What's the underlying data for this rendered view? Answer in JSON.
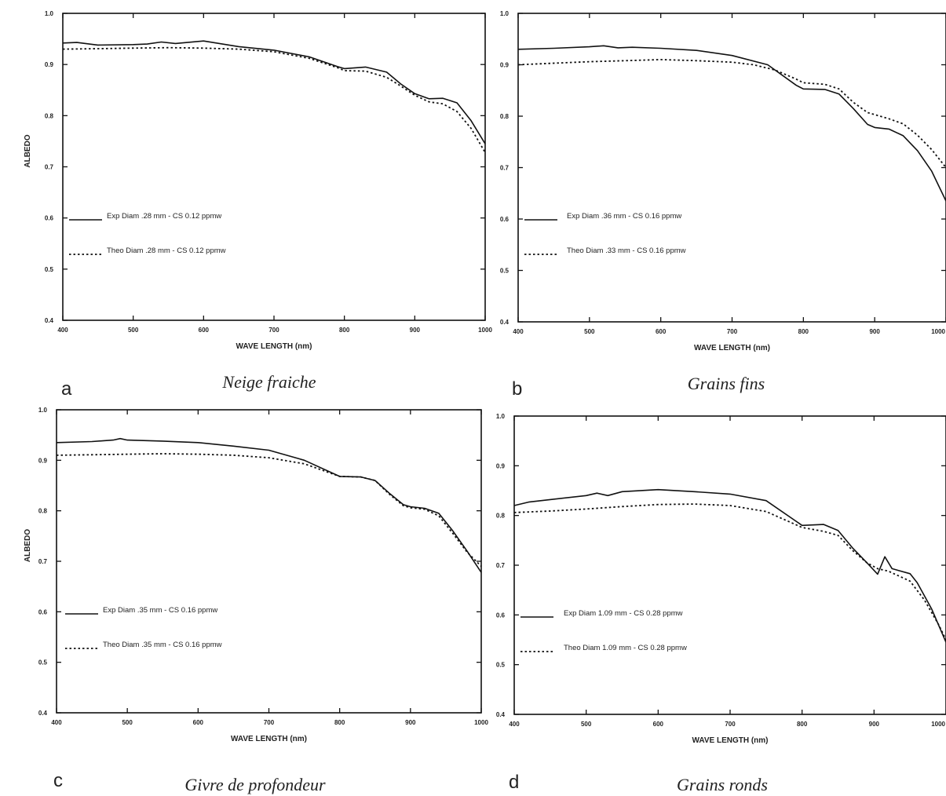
{
  "chart_data": [
    {
      "type": "line",
      "panel": "a",
      "caption": "Neige fraiche",
      "xlabel": "WAVE LENGTH (nm)",
      "ylabel": "ALBEDO",
      "xlim": [
        400,
        1000
      ],
      "ylim": [
        0.4,
        1.0
      ],
      "xticks": [
        "400",
        "500",
        "600",
        "700",
        "800",
        "900",
        "1000"
      ],
      "yticks": [
        "0.4",
        "0.5",
        "0.6",
        "0.7",
        "0.8",
        "0.9",
        "1.0"
      ],
      "legend_position": "center-left",
      "series": [
        {
          "name": "Exp  Diam .28 mm - CS 0.12 ppmw",
          "style": "solid",
          "x": [
            400,
            420,
            450,
            500,
            520,
            540,
            560,
            600,
            650,
            700,
            750,
            790,
            800,
            830,
            860,
            880,
            900,
            920,
            940,
            960,
            980,
            1000
          ],
          "y": [
            0.942,
            0.943,
            0.938,
            0.939,
            0.94,
            0.944,
            0.941,
            0.946,
            0.935,
            0.928,
            0.915,
            0.896,
            0.892,
            0.895,
            0.885,
            0.862,
            0.843,
            0.833,
            0.834,
            0.825,
            0.79,
            0.745
          ]
        },
        {
          "name": "Theo Diam .28 mm - CS 0.12 ppmw",
          "style": "dotted",
          "x": [
            400,
            450,
            500,
            550,
            600,
            650,
            700,
            750,
            790,
            800,
            830,
            860,
            880,
            900,
            920,
            940,
            960,
            980,
            1000
          ],
          "y": [
            0.93,
            0.931,
            0.932,
            0.933,
            0.932,
            0.93,
            0.925,
            0.912,
            0.894,
            0.888,
            0.887,
            0.875,
            0.858,
            0.84,
            0.827,
            0.823,
            0.808,
            0.775,
            0.728
          ]
        }
      ]
    },
    {
      "type": "line",
      "panel": "b",
      "caption": "Grains fins",
      "xlabel": "WAVE LENGTH (nm)",
      "ylabel": "",
      "xlim": [
        400,
        1000
      ],
      "ylim": [
        0.4,
        1.0
      ],
      "xticks": [
        "400",
        "500",
        "600",
        "700",
        "800",
        "900",
        "1000"
      ],
      "yticks": [
        "0.4",
        "0.5",
        "0.6",
        "0.7",
        "0.8",
        "0.9",
        "1.0"
      ],
      "legend_position": "center-left",
      "series": [
        {
          "name": "Exp  Diam .36 mm - CS 0.16 ppmw",
          "style": "solid",
          "x": [
            400,
            450,
            500,
            520,
            540,
            560,
            600,
            650,
            700,
            750,
            790,
            800,
            830,
            850,
            870,
            890,
            900,
            920,
            940,
            960,
            980,
            1000
          ],
          "y": [
            0.93,
            0.932,
            0.935,
            0.937,
            0.933,
            0.934,
            0.932,
            0.928,
            0.918,
            0.9,
            0.86,
            0.853,
            0.852,
            0.843,
            0.815,
            0.784,
            0.778,
            0.775,
            0.762,
            0.733,
            0.693,
            0.635
          ]
        },
        {
          "name": "Theo Diam .33 mm - CS 0.16 ppmw",
          "style": "dotted",
          "x": [
            400,
            450,
            500,
            550,
            600,
            650,
            700,
            730,
            760,
            790,
            800,
            830,
            850,
            870,
            890,
            900,
            920,
            940,
            960,
            980,
            1000
          ],
          "y": [
            0.9,
            0.903,
            0.906,
            0.908,
            0.91,
            0.908,
            0.905,
            0.9,
            0.89,
            0.872,
            0.865,
            0.862,
            0.853,
            0.827,
            0.807,
            0.803,
            0.795,
            0.785,
            0.763,
            0.735,
            0.7
          ]
        }
      ]
    },
    {
      "type": "line",
      "panel": "c",
      "caption": "Givre de profondeur",
      "xlabel": "WAVE LENGTH (nm)",
      "ylabel": "ALBEDO",
      "xlim": [
        400,
        1000
      ],
      "ylim": [
        0.4,
        1.0
      ],
      "xticks": [
        "400",
        "500",
        "600",
        "700",
        "800",
        "900",
        "1000"
      ],
      "yticks": [
        "0.4",
        "0.5",
        "0.6",
        "0.7",
        "0.8",
        "0.9",
        "1.0"
      ],
      "legend_position": "center-left",
      "series": [
        {
          "name": "Exp  Diam .35 mm - CS 0.16 ppmw",
          "style": "solid",
          "x": [
            400,
            450,
            480,
            490,
            500,
            550,
            600,
            650,
            700,
            750,
            800,
            830,
            850,
            870,
            890,
            900,
            920,
            940,
            960,
            980,
            1000
          ],
          "y": [
            0.935,
            0.937,
            0.94,
            0.943,
            0.94,
            0.938,
            0.935,
            0.928,
            0.92,
            0.9,
            0.868,
            0.867,
            0.86,
            0.835,
            0.812,
            0.808,
            0.805,
            0.795,
            0.76,
            0.72,
            0.678
          ]
        },
        {
          "name": "Theo Diam .35 mm - CS 0.16 ppmw",
          "style": "dotted",
          "x": [
            400,
            450,
            500,
            550,
            600,
            650,
            700,
            750,
            800,
            830,
            850,
            870,
            890,
            900,
            920,
            940,
            960,
            980,
            1000
          ],
          "y": [
            0.91,
            0.911,
            0.912,
            0.913,
            0.912,
            0.91,
            0.905,
            0.893,
            0.868,
            0.867,
            0.86,
            0.833,
            0.81,
            0.806,
            0.803,
            0.79,
            0.755,
            0.718,
            0.69
          ]
        }
      ]
    },
    {
      "type": "line",
      "panel": "d",
      "caption": "Grains ronds",
      "xlabel": "WAVE LENGTH (nm)",
      "ylabel": "",
      "xlim": [
        400,
        1000
      ],
      "ylim": [
        0.4,
        1.0
      ],
      "xticks": [
        "400",
        "500",
        "600",
        "700",
        "800",
        "900",
        "1000"
      ],
      "yticks": [
        "0.4",
        "0.5",
        "0.6",
        "0.7",
        "0.8",
        "0.9",
        "1.0"
      ],
      "legend_position": "center-left",
      "series": [
        {
          "name": "Exp  Diam 1.09 mm - CS 0.28 ppmw",
          "style": "solid",
          "x": [
            400,
            420,
            450,
            500,
            515,
            530,
            550,
            600,
            650,
            700,
            750,
            800,
            830,
            850,
            870,
            890,
            905,
            915,
            925,
            950,
            960,
            980,
            1000
          ],
          "y": [
            0.82,
            0.827,
            0.832,
            0.84,
            0.845,
            0.84,
            0.848,
            0.852,
            0.848,
            0.843,
            0.83,
            0.78,
            0.782,
            0.77,
            0.735,
            0.705,
            0.682,
            0.717,
            0.693,
            0.683,
            0.665,
            0.612,
            0.545
          ]
        },
        {
          "name": "Theo Diam 1.09 mm - CS 0.28 ppmw",
          "style": "dotted",
          "x": [
            400,
            450,
            500,
            550,
            600,
            650,
            700,
            750,
            800,
            830,
            850,
            870,
            890,
            905,
            920,
            950,
            970,
            990,
            1000
          ],
          "y": [
            0.806,
            0.809,
            0.813,
            0.818,
            0.822,
            0.823,
            0.82,
            0.808,
            0.776,
            0.768,
            0.76,
            0.73,
            0.705,
            0.693,
            0.688,
            0.668,
            0.63,
            0.58,
            0.55
          ]
        }
      ]
    }
  ]
}
